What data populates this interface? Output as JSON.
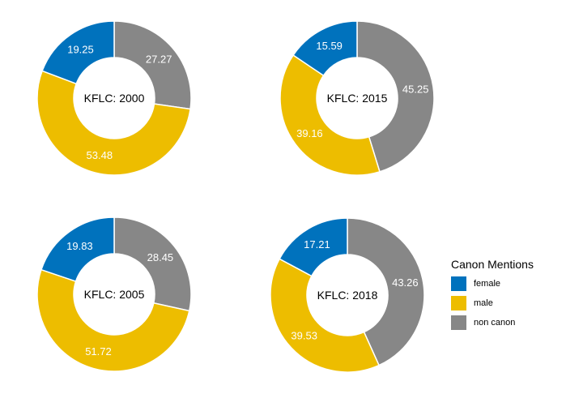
{
  "chart_data": {
    "type": "pie",
    "subtype": "donut",
    "legend": {
      "title": "Canon Mentions",
      "placement": "right",
      "entries": [
        {
          "name": "female",
          "color": "#0072BD"
        },
        {
          "name": "male",
          "color": "#EDBD00"
        },
        {
          "name": "non canon",
          "color": "#878787"
        }
      ]
    },
    "charts": [
      {
        "center_label": "KFLC: 2000",
        "slices": [
          {
            "category": "non canon",
            "value": 27.27,
            "label": "27.27"
          },
          {
            "category": "male",
            "value": 53.48,
            "label": "53.48"
          },
          {
            "category": "female",
            "value": 19.25,
            "label": "19.25"
          }
        ]
      },
      {
        "center_label": "KFLC: 2015",
        "slices": [
          {
            "category": "non canon",
            "value": 45.25,
            "label": "45.25"
          },
          {
            "category": "male",
            "value": 39.16,
            "label": "39.16"
          },
          {
            "category": "female",
            "value": 15.59,
            "label": "15.59"
          }
        ]
      },
      {
        "center_label": "KFLC: 2005",
        "slices": [
          {
            "category": "non canon",
            "value": 28.45,
            "label": "28.45"
          },
          {
            "category": "male",
            "value": 51.72,
            "label": "51.72"
          },
          {
            "category": "female",
            "value": 19.83,
            "label": "19.83"
          }
        ]
      },
      {
        "center_label": "KFLC: 2018",
        "slices": [
          {
            "category": "non canon",
            "value": 43.26,
            "label": "43.26"
          },
          {
            "category": "male",
            "value": 39.53,
            "label": "39.53"
          },
          {
            "category": "female",
            "value": 17.21,
            "label": "17.21"
          }
        ]
      }
    ]
  }
}
